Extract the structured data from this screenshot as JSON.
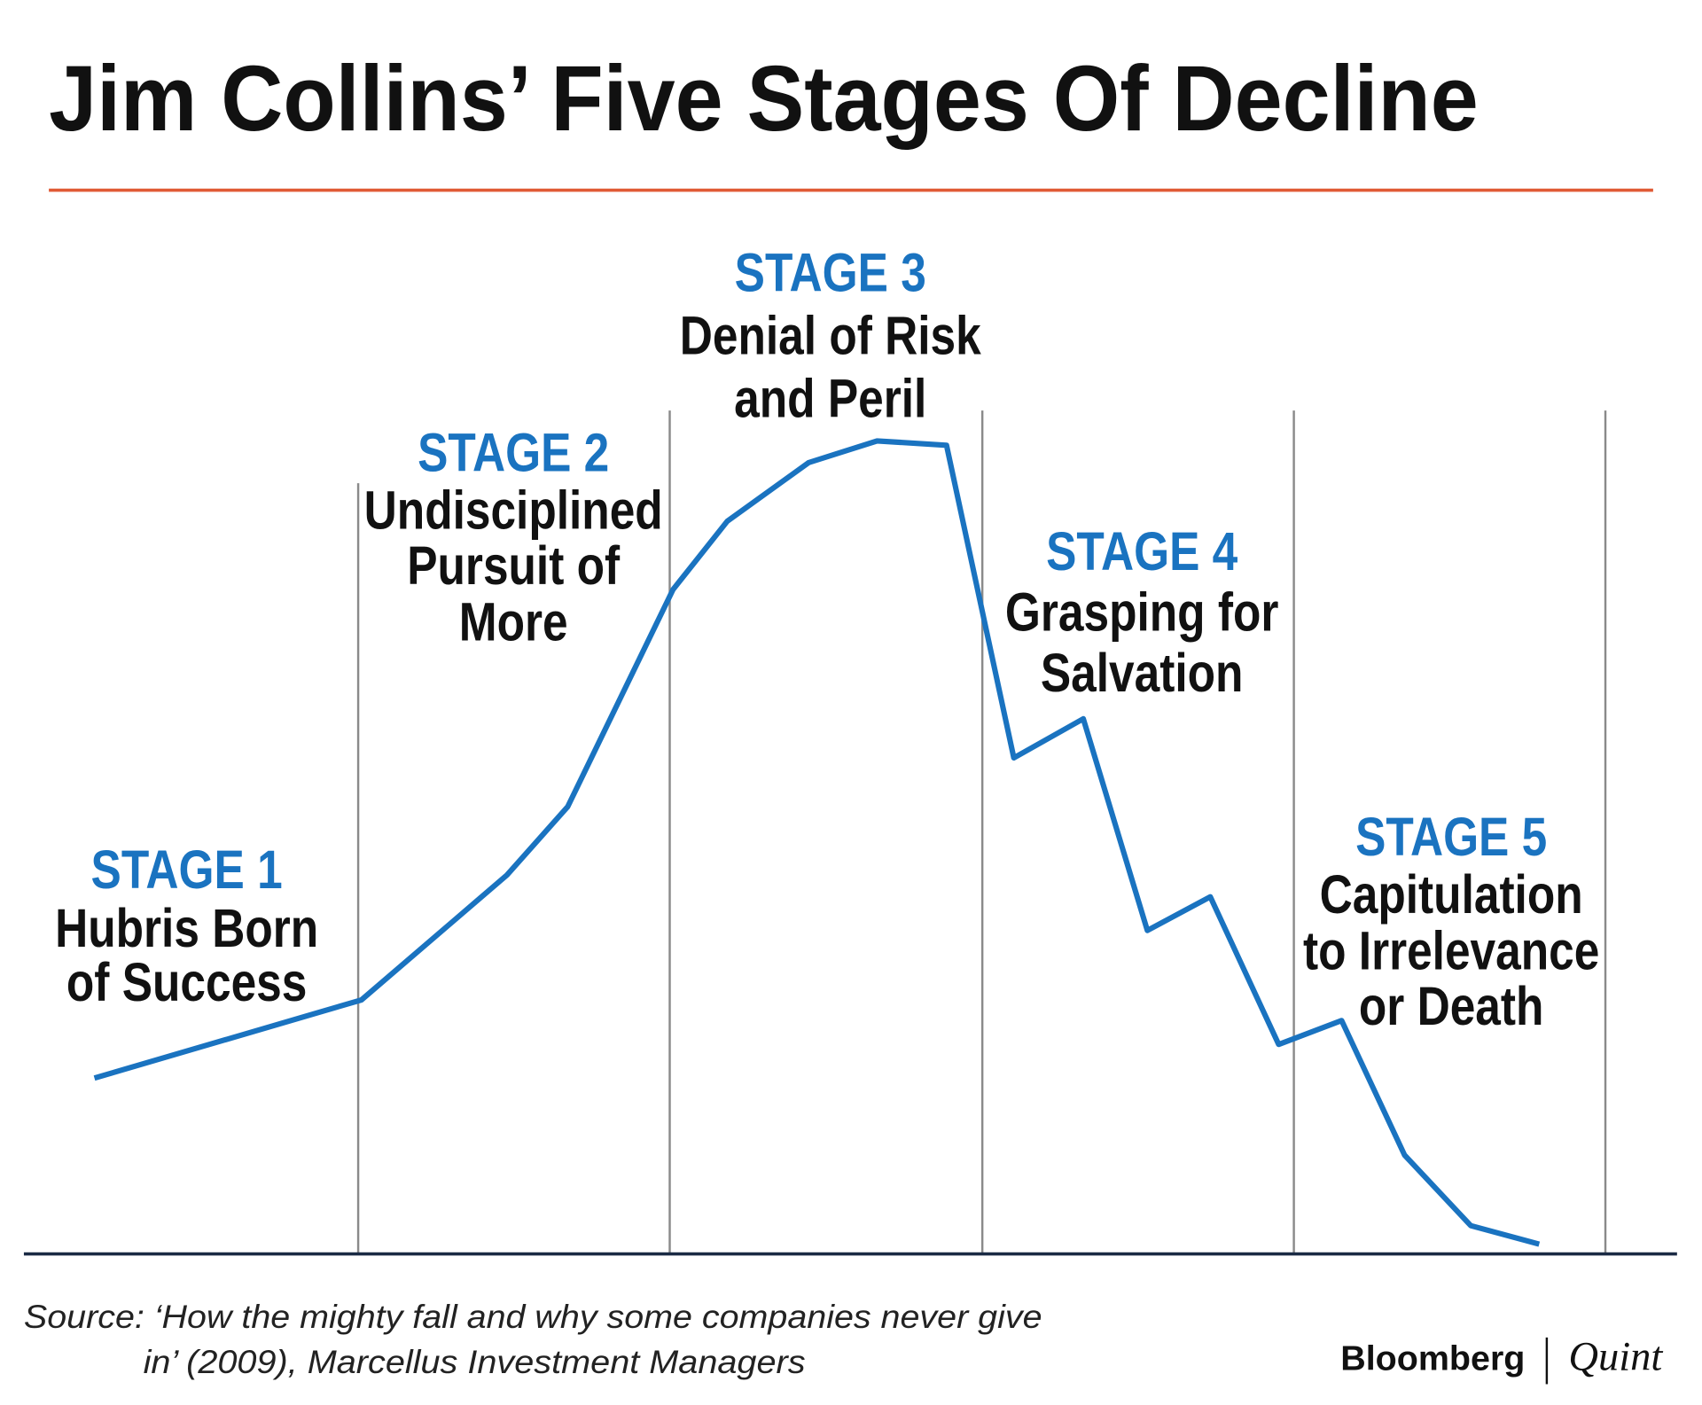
{
  "header": {
    "title": "Jim Collins’ Five Stages Of Decline"
  },
  "stages": [
    {
      "label": "STAGE 1",
      "lines": [
        "Hubris Born",
        "of Success"
      ]
    },
    {
      "label": "STAGE 2",
      "lines": [
        "Undisciplined",
        "Pursuit of",
        "More"
      ]
    },
    {
      "label": "STAGE 3",
      "lines": [
        "Denial of Risk",
        "and Peril"
      ]
    },
    {
      "label": "STAGE 4",
      "lines": [
        "Grasping for",
        "Salvation"
      ]
    },
    {
      "label": "STAGE 5",
      "lines": [
        "Capitulation",
        "to Irrelevance",
        "or Death"
      ]
    }
  ],
  "footer": {
    "source": [
      "Source: ‘How the mighty fall and why some companies never give",
      "in’ (2009), Marcellus Investment Managers"
    ],
    "logo": {
      "left": "Bloomberg",
      "right": "Quint"
    }
  }
}
